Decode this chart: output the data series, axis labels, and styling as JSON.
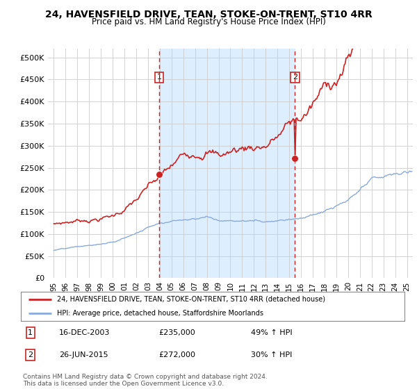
{
  "title": "24, HAVENSFIELD DRIVE, TEAN, STOKE-ON-TRENT, ST10 4RR",
  "subtitle": "Price paid vs. HM Land Registry's House Price Index (HPI)",
  "background_color": "#ffffff",
  "plot_bg_color": "#ffffff",
  "red_color": "#cc2222",
  "blue_color": "#88aadd",
  "shade_color": "#ddeeff",
  "sale1": {
    "date_num": 2003.96,
    "price": 235000,
    "label": "1",
    "date_str": "16-DEC-2003",
    "pct": "49% ↑ HPI"
  },
  "sale2": {
    "date_num": 2015.49,
    "price": 272000,
    "label": "2",
    "date_str": "26-JUN-2015",
    "pct": "30% ↑ HPI"
  },
  "legend_line1": "24, HAVENSFIELD DRIVE, TEAN, STOKE-ON-TRENT, ST10 4RR (detached house)",
  "legend_line2": "HPI: Average price, detached house, Staffordshire Moorlands",
  "footer": "Contains HM Land Registry data © Crown copyright and database right 2024.\nThis data is licensed under the Open Government Licence v3.0.",
  "ylim": [
    0,
    520000
  ],
  "xlim": [
    1994.5,
    2025.5
  ],
  "yticks": [
    0,
    50000,
    100000,
    150000,
    200000,
    250000,
    300000,
    350000,
    400000,
    450000,
    500000
  ],
  "ytick_labels": [
    "£0",
    "£50K",
    "£100K",
    "£150K",
    "£200K",
    "£250K",
    "£300K",
    "£350K",
    "£400K",
    "£450K",
    "£500K"
  ],
  "xtick_labels": [
    "95",
    "96",
    "97",
    "98",
    "99",
    "00",
    "01",
    "02",
    "03",
    "04",
    "05",
    "06",
    "07",
    "08",
    "09",
    "10",
    "11",
    "12",
    "13",
    "14",
    "15",
    "16",
    "17",
    "18",
    "19",
    "20",
    "21",
    "22",
    "23",
    "24",
    "25"
  ],
  "xticks": [
    1995,
    1996,
    1997,
    1998,
    1999,
    2000,
    2001,
    2002,
    2003,
    2004,
    2005,
    2006,
    2007,
    2008,
    2009,
    2010,
    2011,
    2012,
    2013,
    2014,
    2015,
    2016,
    2017,
    2018,
    2019,
    2020,
    2021,
    2022,
    2023,
    2024,
    2025
  ]
}
